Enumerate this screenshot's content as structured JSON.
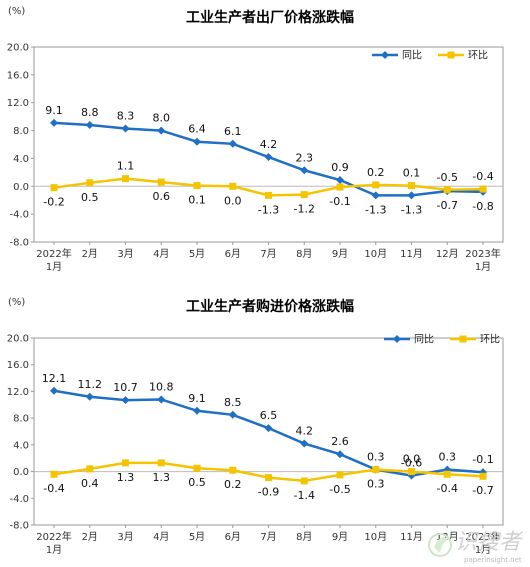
{
  "chart_data": [
    {
      "type": "line",
      "title": "工业生产者出厂价格涨跌幅",
      "unit_label": "(%)",
      "ylim": [
        -8.0,
        20.0
      ],
      "yticks": [
        "-8.0",
        "-4.0",
        "0.0",
        "4.0",
        "8.0",
        "12.0",
        "16.0",
        "20.0"
      ],
      "categories": [
        "2022年1月",
        "2月",
        "3月",
        "4月",
        "5月",
        "6月",
        "7月",
        "8月",
        "9月",
        "10月",
        "11月",
        "12月",
        "2023年1月"
      ],
      "legend_position": "top-right",
      "series": [
        {
          "name": "同比",
          "color": "#1f6fc5",
          "values": [
            9.1,
            8.8,
            8.3,
            8.0,
            6.4,
            6.1,
            4.2,
            2.3,
            0.9,
            -1.3,
            -1.3,
            -0.7,
            -0.8
          ]
        },
        {
          "name": "环比",
          "color": "#f5c400",
          "values": [
            -0.2,
            0.5,
            1.1,
            0.6,
            0.1,
            0.0,
            -1.3,
            -1.2,
            -0.1,
            0.2,
            0.1,
            -0.5,
            -0.4
          ]
        }
      ]
    },
    {
      "type": "line",
      "title": "工业生产者购进价格涨跌幅",
      "unit_label": "(%)",
      "ylim": [
        -8.0,
        20.0
      ],
      "yticks": [
        "-8.0",
        "-4.0",
        "0.0",
        "4.0",
        "8.0",
        "12.0",
        "16.0",
        "20.0"
      ],
      "categories": [
        "2022年1月",
        "2月",
        "3月",
        "4月",
        "5月",
        "6月",
        "7月",
        "8月",
        "9月",
        "10月",
        "11月",
        "12月",
        "2023年1月"
      ],
      "legend_position": "top-right",
      "series": [
        {
          "name": "同比",
          "color": "#1f6fc5",
          "values": [
            12.1,
            11.2,
            10.7,
            10.8,
            9.1,
            8.5,
            6.5,
            4.2,
            2.6,
            0.3,
            -0.6,
            0.3,
            -0.1
          ]
        },
        {
          "name": "环比",
          "color": "#f5c400",
          "values": [
            -0.4,
            0.4,
            1.3,
            1.3,
            0.5,
            0.2,
            -0.9,
            -1.4,
            -0.5,
            0.3,
            0.0,
            -0.4,
            -0.7
          ]
        }
      ]
    }
  ],
  "watermark": {
    "text": "识搜者",
    "url": "paperinsight.net"
  }
}
